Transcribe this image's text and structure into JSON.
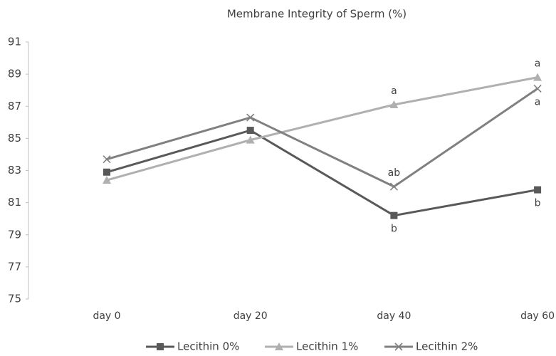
{
  "chart_data": {
    "type": "line",
    "title": "Membrane Integrity of Sperm (%)",
    "categories": [
      "day 0",
      "day 20",
      "day 40",
      "day 60"
    ],
    "series": [
      {
        "name": "Lecithin 0%",
        "color": "#595959",
        "marker": "square",
        "values": [
          82.9,
          85.5,
          80.2,
          81.8
        ]
      },
      {
        "name": "Lecithin 1%",
        "color": "#b0b0b0",
        "marker": "triangle",
        "values": [
          82.4,
          84.9,
          87.1,
          88.8
        ]
      },
      {
        "name": "Lecithin 2%",
        "color": "#808080",
        "marker": "x",
        "values": [
          83.7,
          86.3,
          82.0,
          88.1
        ]
      }
    ],
    "annotations": [
      {
        "text": "a",
        "series": 1,
        "point": 2,
        "side": "above"
      },
      {
        "text": "ab",
        "series": 2,
        "point": 2,
        "side": "above"
      },
      {
        "text": "b",
        "series": 0,
        "point": 2,
        "side": "below"
      },
      {
        "text": "a",
        "series": 1,
        "point": 3,
        "side": "above"
      },
      {
        "text": "a",
        "series": 2,
        "point": 3,
        "side": "below"
      },
      {
        "text": "b",
        "series": 0,
        "point": 3,
        "side": "below"
      }
    ],
    "ylim": [
      75,
      91
    ],
    "yticks": [
      75,
      77,
      79,
      81,
      83,
      85,
      87,
      89,
      91
    ],
    "grid": false,
    "legend": "bottom"
  }
}
